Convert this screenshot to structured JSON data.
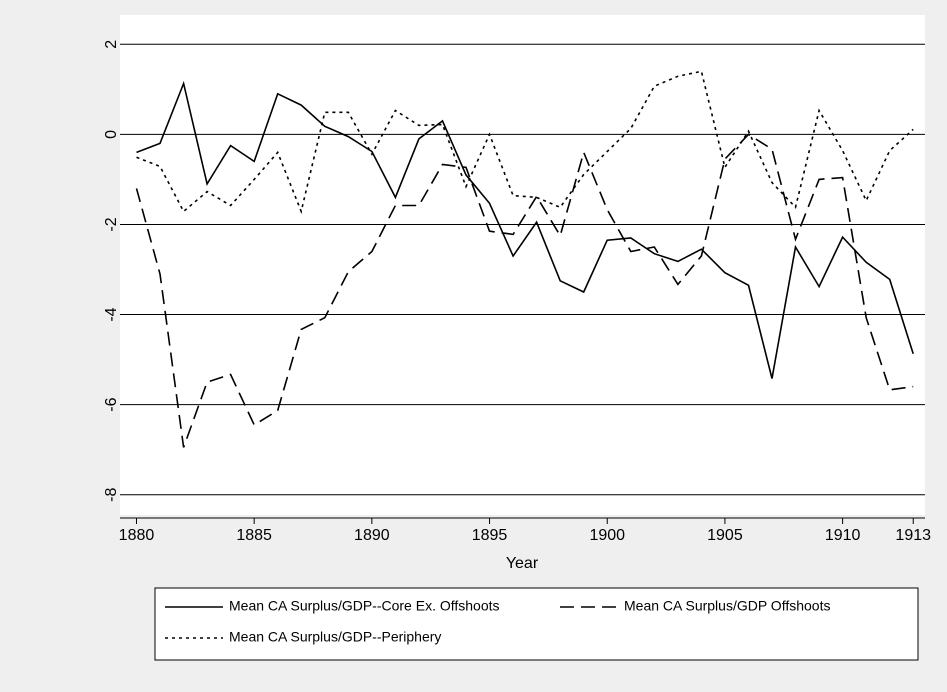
{
  "chart_data": {
    "type": "line",
    "x_label": "Year",
    "x": [
      1880,
      1881,
      1882,
      1883,
      1884,
      1885,
      1886,
      1887,
      1888,
      1889,
      1890,
      1891,
      1892,
      1893,
      1894,
      1895,
      1896,
      1897,
      1898,
      1899,
      1900,
      1901,
      1902,
      1903,
      1904,
      1905,
      1906,
      1907,
      1908,
      1909,
      1910,
      1911,
      1912,
      1913
    ],
    "series": [
      {
        "name": "Mean CA Surplus/GDP--Core Ex. Offshoots",
        "color": "#000000",
        "dash": "solid",
        "values": [
          -0.4,
          -0.2,
          1.13,
          -1.1,
          -0.25,
          -0.6,
          0.9,
          0.65,
          0.18,
          -0.05,
          -0.38,
          -1.4,
          -0.1,
          0.3,
          -0.9,
          -1.53,
          -2.7,
          -1.95,
          -3.25,
          -3.5,
          -2.35,
          -2.3,
          -2.65,
          -2.82,
          -2.55,
          -3.07,
          -3.35,
          -5.42,
          -2.5,
          -3.38,
          -2.28,
          -2.84,
          -3.22,
          -4.87
        ]
      },
      {
        "name": "Mean CA Surplus/GDP Offshoots",
        "color": "#000000",
        "dash": "long",
        "values": [
          -1.2,
          -3.1,
          -6.95,
          -5.5,
          -5.33,
          -6.45,
          -6.13,
          -4.33,
          -4.07,
          -3.05,
          -2.6,
          -1.58,
          -1.58,
          -0.67,
          -0.73,
          -2.15,
          -2.22,
          -1.38,
          -2.25,
          -0.4,
          -1.67,
          -2.6,
          -2.5,
          -3.33,
          -2.7,
          -0.55,
          0,
          -0.33,
          -2.33,
          -1.0,
          -0.96,
          -4.07,
          -5.67,
          -5.6
        ]
      },
      {
        "name": "Mean CA Surplus/GDP--Periphery",
        "color": "#000000",
        "dash": "short",
        "values": [
          -0.51,
          -0.71,
          -1.71,
          -1.27,
          -1.58,
          -1.0,
          -0.4,
          -1.71,
          0.49,
          0.49,
          -0.44,
          0.53,
          0.2,
          0.22,
          -1.16,
          0,
          -1.36,
          -1.4,
          -1.62,
          -0.89,
          -0.38,
          0.13,
          1.07,
          1.29,
          1.4,
          -0.73,
          0.07,
          -1.07,
          -1.62,
          0.53,
          -0.36,
          -1.47,
          -0.36,
          0.11
        ]
      }
    ],
    "xlim": [
      1879.3,
      1913.5
    ],
    "xticks": [
      1880,
      1885,
      1890,
      1895,
      1900,
      1905,
      1910,
      1913
    ],
    "ylim": [
      -8.45,
      2.65
    ],
    "yticks": [
      -8,
      -6,
      -4,
      -2,
      0,
      2
    ],
    "grid": true
  }
}
